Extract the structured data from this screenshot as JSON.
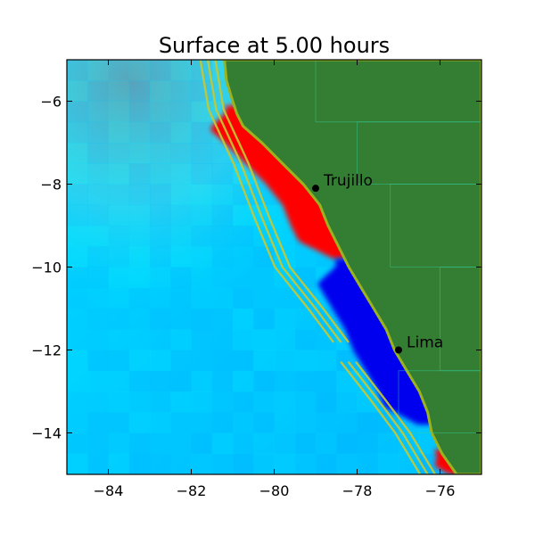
{
  "chart_data": {
    "type": "heatmap",
    "title": "Surface at 5.00 hours",
    "xlabel": "",
    "ylabel": "",
    "xlim": [
      -85,
      -75
    ],
    "ylim": [
      -15,
      -5
    ],
    "xticks": [
      -84,
      -82,
      -80,
      -78,
      -76
    ],
    "yticks": [
      -6,
      -8,
      -10,
      -12,
      -14
    ],
    "grid": false,
    "cities": [
      {
        "name": "Trujillo",
        "lon": -79.0,
        "lat": -8.1
      },
      {
        "name": "Lima",
        "lon": -77.0,
        "lat": -12.0
      }
    ],
    "colors": {
      "land": "#347e34",
      "deep_ocean": "#00c2ff",
      "shallow_ocean": "#00eeff",
      "trough": "#0000ee",
      "crest": "#ff0000",
      "fault": "#c8c832",
      "offshore_haze": "#8a9a9a"
    },
    "coastline": [
      [
        -81.2,
        -5.0
      ],
      [
        -81.15,
        -5.5
      ],
      [
        -81.0,
        -6.0
      ],
      [
        -80.9,
        -6.3
      ],
      [
        -80.75,
        -6.6
      ],
      [
        -80.3,
        -7.0
      ],
      [
        -79.8,
        -7.5
      ],
      [
        -79.3,
        -8.0
      ],
      [
        -78.9,
        -8.5
      ],
      [
        -78.7,
        -9.0
      ],
      [
        -78.45,
        -9.5
      ],
      [
        -78.2,
        -10.0
      ],
      [
        -77.9,
        -10.5
      ],
      [
        -77.6,
        -11.0
      ],
      [
        -77.3,
        -11.5
      ],
      [
        -77.1,
        -12.0
      ],
      [
        -76.8,
        -12.5
      ],
      [
        -76.5,
        -13.0
      ],
      [
        -76.3,
        -13.5
      ],
      [
        -76.2,
        -14.0
      ],
      [
        -75.95,
        -14.5
      ],
      [
        -75.6,
        -15.0
      ]
    ],
    "wave_bands": [
      {
        "name": "crest",
        "from_lat": -6.1,
        "to_lat": -9.8,
        "width_deg": 0.9
      },
      {
        "name": "trough",
        "from_lat": -9.8,
        "to_lat": -13.8,
        "width_deg": 1.0
      },
      {
        "name": "crest",
        "from_lat": -14.4,
        "to_lat": -15.0,
        "width_deg": 0.6
      }
    ],
    "fault_segments": [
      [
        [
          -81.6,
          -5.0
        ],
        [
          -81.4,
          -6.2
        ],
        [
          -80.8,
          -7.5
        ],
        [
          -80.3,
          -8.8
        ],
        [
          -79.8,
          -10.0
        ],
        [
          -79.0,
          -11.0
        ],
        [
          -78.4,
          -11.8
        ]
      ],
      [
        [
          -78.2,
          -12.3
        ],
        [
          -77.5,
          -13.2
        ],
        [
          -76.9,
          -14.0
        ],
        [
          -76.3,
          -15.0
        ]
      ]
    ]
  }
}
